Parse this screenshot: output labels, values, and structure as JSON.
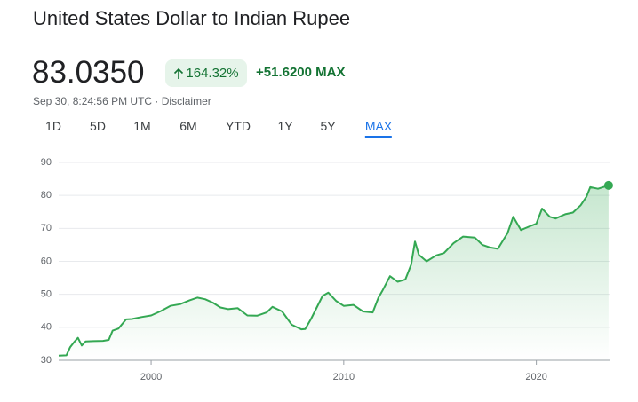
{
  "header": {
    "title": "United States Dollar to Indian Rupee",
    "price": "83.0350",
    "percent_change": "164.32%",
    "change": "+51.6200 MAX",
    "timestamp": "Sep 30, 8:24:56 PM UTC · Disclaimer"
  },
  "tabs": [
    "1D",
    "5D",
    "1M",
    "6M",
    "YTD",
    "1Y",
    "5Y",
    "MAX"
  ],
  "active_tab": 7,
  "chart_data": {
    "type": "area",
    "color": "#34a853",
    "x": [
      1995.2,
      1995.6,
      1995.8,
      1996.0,
      1996.2,
      1996.4,
      1996.6,
      1997.0,
      1997.5,
      1997.8,
      1998.0,
      1998.3,
      1998.7,
      1999.0,
      1999.5,
      2000.0,
      2000.5,
      2001.0,
      2001.5,
      2002.0,
      2002.4,
      2002.8,
      2003.2,
      2003.6,
      2004.0,
      2004.5,
      2005.0,
      2005.5,
      2006.0,
      2006.3,
      2006.8,
      2007.3,
      2007.8,
      2008.0,
      2008.3,
      2008.6,
      2008.9,
      2009.2,
      2009.6,
      2010.0,
      2010.5,
      2011.0,
      2011.5,
      2011.8,
      2012.0,
      2012.4,
      2012.8,
      2013.2,
      2013.5,
      2013.7,
      2013.9,
      2014.3,
      2014.8,
      2015.2,
      2015.7,
      2016.2,
      2016.8,
      2017.2,
      2017.6,
      2018.0,
      2018.5,
      2018.8,
      2019.2,
      2019.6,
      2020.0,
      2020.3,
      2020.7,
      2021.0,
      2021.5,
      2021.9,
      2022.3,
      2022.6,
      2022.8,
      2023.2,
      2023.75
    ],
    "values": [
      31.4,
      31.5,
      34,
      35.5,
      36.8,
      34.5,
      35.7,
      35.8,
      35.9,
      36.2,
      39,
      39.6,
      42.4,
      42.5,
      43.1,
      43.6,
      44.9,
      46.5,
      47,
      48.2,
      49,
      48.5,
      47.5,
      46,
      45.5,
      45.8,
      43.6,
      43.5,
      44.5,
      46.2,
      44.8,
      40.8,
      39.4,
      39.5,
      42.5,
      46,
      49.5,
      50.5,
      48,
      46.5,
      46.8,
      44.8,
      44.5,
      49,
      51,
      55.5,
      53.8,
      54.5,
      59,
      66,
      62,
      60,
      61.8,
      62.5,
      65.5,
      67.5,
      67.2,
      65,
      64.2,
      63.8,
      68.5,
      73.5,
      69.5,
      70.5,
      71.4,
      76,
      73.5,
      73,
      74.3,
      74.8,
      77,
      79.6,
      82.5,
      82,
      83.035
    ],
    "xlim": [
      1995.2,
      2023.8
    ],
    "ylim": [
      30,
      90
    ],
    "xticks": [
      2000,
      2010,
      2020
    ],
    "yticks": [
      30,
      40,
      50,
      60,
      70,
      80,
      90
    ],
    "grid": true
  }
}
